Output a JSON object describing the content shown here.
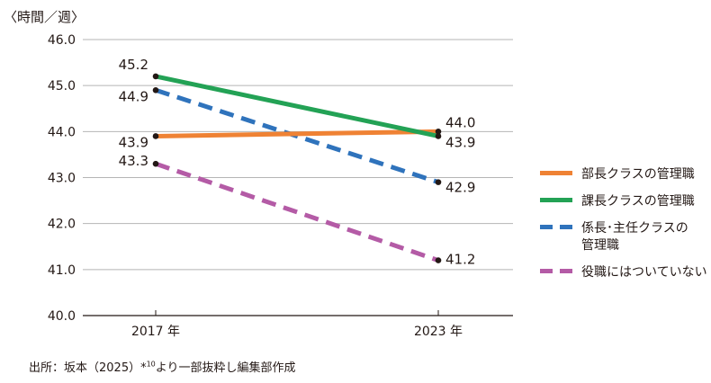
{
  "chart_data": {
    "type": "line",
    "unit_label": "〈時間／週〉",
    "categories": [
      "2017 年",
      "2023 年"
    ],
    "ylim": [
      40.0,
      46.0
    ],
    "yticks": [
      "40.0",
      "41.0",
      "42.0",
      "43.0",
      "44.0",
      "45.0",
      "46.0"
    ],
    "grid": true,
    "legend_position": "right",
    "series": [
      {
        "name": "部長クラスの管理職",
        "values": [
          43.9,
          44.0
        ],
        "labels": [
          "43.9",
          "44.0"
        ],
        "color": "#ef8234",
        "dashed": false
      },
      {
        "name": "課長クラスの管理職",
        "values": [
          45.2,
          43.9
        ],
        "labels": [
          "45.2",
          "43.9"
        ],
        "color": "#23a255",
        "dashed": false
      },
      {
        "name": "係長・主任クラスの管理職",
        "legend_lines": [
          "係長･主任クラスの",
          "管理職"
        ],
        "values": [
          44.9,
          42.9
        ],
        "labels": [
          "44.9",
          "42.9"
        ],
        "color": "#2f73bc",
        "dashed": true
      },
      {
        "name": "役職にはついていない",
        "values": [
          43.3,
          41.2
        ],
        "labels": [
          "43.3",
          "41.2"
        ],
        "color": "#b45ba6",
        "dashed": true
      }
    ]
  },
  "source": {
    "prefix": "出所：坂本（2025）*",
    "note": "10",
    "suffix": "より一部抜粋し編集部作成"
  }
}
